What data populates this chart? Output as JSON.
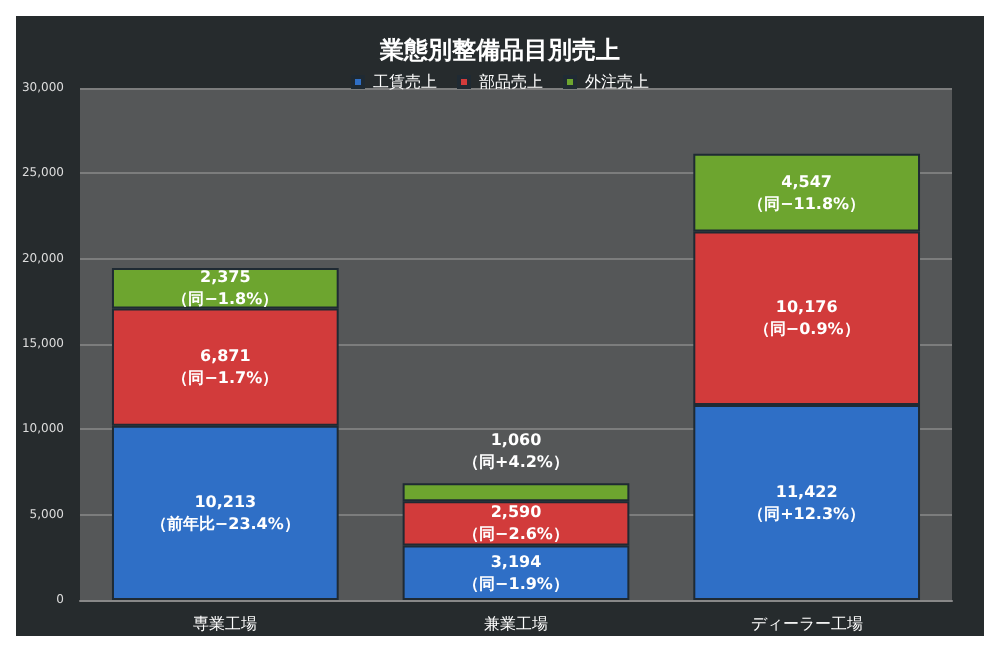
{
  "chart_data": {
    "type": "bar",
    "stacked": true,
    "title": "業態別整備品目別売上",
    "categories": [
      "専業工場",
      "兼業工場",
      "ディーラー工場"
    ],
    "series": [
      {
        "name": "工賃売上",
        "color": "#2f6fc6",
        "values": [
          10213,
          3194,
          11422
        ],
        "value_labels": [
          "10,213\n（前年比−23.4%）",
          "3,194\n（同−1.9%）",
          "11,422\n（同+12.3%）"
        ]
      },
      {
        "name": "部品売上",
        "color": "#d23b3b",
        "values": [
          6871,
          2590,
          10176
        ],
        "value_labels": [
          "6,871\n（同−1.7%）",
          "2,590\n（同−2.6%）",
          "10,176\n（同−0.9%）"
        ]
      },
      {
        "name": "外注売上",
        "color": "#6da52f",
        "values": [
          2375,
          1060,
          4547
        ],
        "value_labels": [
          "2,375\n（同−1.8%）",
          "1,060\n（同+4.2%）",
          "4,547\n（同−11.8%）"
        ]
      }
    ],
    "ylim": [
      0,
      30000
    ],
    "yticks": [
      {
        "value": 0,
        "label": "0"
      },
      {
        "value": 5000,
        "label": "5,000"
      },
      {
        "value": 10000,
        "label": "10,000"
      },
      {
        "value": 15000,
        "label": "15,000"
      },
      {
        "value": 20000,
        "label": "20,000"
      },
      {
        "value": 25000,
        "label": "25,000"
      },
      {
        "value": 30000,
        "label": "30,000"
      }
    ],
    "grid": "y",
    "legend": "top"
  }
}
